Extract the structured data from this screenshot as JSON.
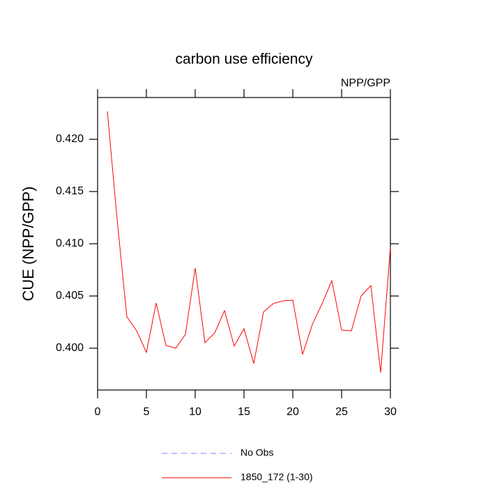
{
  "chart_data": {
    "type": "line",
    "title": "carbon use efficiency",
    "subtitle": "NPP/GPP",
    "y_label": "CUE  (NPP/GPP)",
    "x": [
      1,
      2,
      3,
      4,
      5,
      6,
      7,
      8,
      9,
      10,
      11,
      12,
      13,
      14,
      15,
      16,
      17,
      18,
      19,
      20,
      21,
      22,
      23,
      24,
      25,
      26,
      27,
      28,
      29,
      30
    ],
    "series": [
      {
        "name": "No Obs",
        "color": "#8080ff",
        "dashed": true,
        "values": [
          null,
          null,
          null,
          null,
          null,
          null,
          null,
          null,
          null,
          null,
          null,
          null,
          null,
          null,
          null,
          null,
          null,
          null,
          null,
          null,
          null,
          null,
          null,
          null,
          null,
          null,
          null,
          null,
          null,
          null
        ]
      },
      {
        "name": "1850_172 (1-30)",
        "color": "#ff0000",
        "dashed": false,
        "values": [
          0.42267,
          0.41233,
          0.403,
          0.40167,
          0.3996,
          0.40433,
          0.40027,
          0.4,
          0.40133,
          0.40767,
          0.40053,
          0.40147,
          0.4036,
          0.4002,
          0.40187,
          0.39853,
          0.40347,
          0.40427,
          0.40453,
          0.4046,
          0.3994,
          0.40227,
          0.40427,
          0.40647,
          0.40173,
          0.40167,
          0.405,
          0.406,
          0.39767,
          0.40967
        ]
      }
    ],
    "xlim": [
      0,
      30
    ],
    "xticks": [
      0,
      5,
      10,
      15,
      20,
      25,
      30
    ],
    "ylim": [
      0.396,
      0.424
    ],
    "yticks": [
      {
        "value": 0.4,
        "label": "0.400"
      },
      {
        "value": 0.405,
        "label": "0.405"
      },
      {
        "value": 0.41,
        "label": "0.410"
      },
      {
        "value": 0.415,
        "label": "0.415"
      },
      {
        "value": 0.42,
        "label": "0.420"
      }
    ]
  }
}
